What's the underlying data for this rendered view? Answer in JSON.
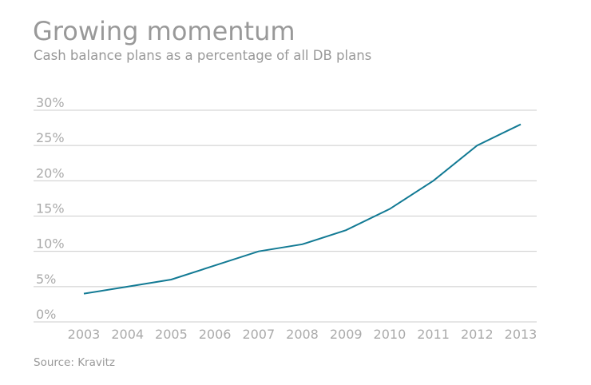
{
  "chart_data": {
    "type": "line",
    "title": "Growing momentum",
    "subtitle": "Cash balance plans as a percentage of all DB plans",
    "source": "Source: Kravitz",
    "categories": [
      "2003",
      "2004",
      "2005",
      "2006",
      "2007",
      "2008",
      "2009",
      "2010",
      "2011",
      "2012",
      "2013"
    ],
    "values": [
      4,
      5,
      6,
      8,
      10,
      11,
      13,
      16,
      20,
      25,
      28
    ],
    "ylim": [
      0,
      30
    ],
    "yticks": [
      0,
      5,
      10,
      15,
      20,
      25,
      30
    ],
    "ytick_labels": [
      "0%",
      "5%",
      "10%",
      "15%",
      "20%",
      "25%",
      "30%"
    ],
    "grid": true,
    "line_color": "#127a94",
    "grid_color": "#cccccc"
  }
}
